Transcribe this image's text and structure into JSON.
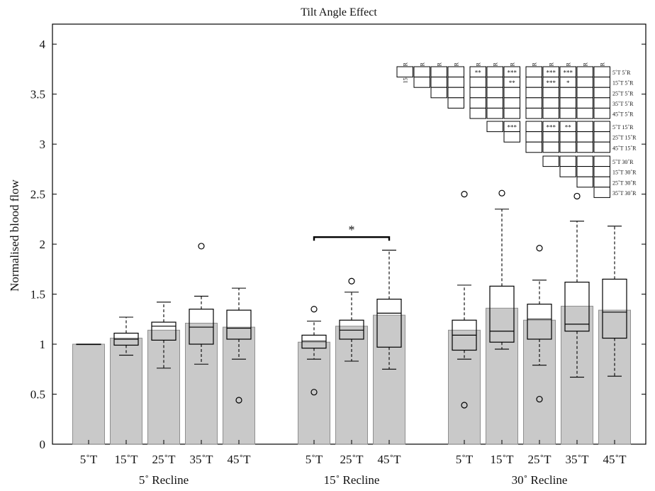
{
  "chart_data": {
    "type": "box",
    "title": "Tilt Angle Effect",
    "ylabel": "Normalised blood flow",
    "ylim": [
      0,
      4.2
    ],
    "yticks": [
      0,
      0.5,
      1,
      1.5,
      2,
      2.5,
      3,
      3.5,
      4
    ],
    "groups": [
      {
        "label": "5˚ Recline",
        "categories": [
          {
            "tick": "5˚T",
            "bar": 1.0,
            "whisker_low": 1.0,
            "q1": 1.0,
            "median": 1.0,
            "q3": 1.0,
            "whisker_high": 1.0,
            "outliers": []
          },
          {
            "tick": "15˚T",
            "bar": 1.06,
            "whisker_low": 0.89,
            "q1": 0.99,
            "median": 1.05,
            "q3": 1.11,
            "whisker_high": 1.27,
            "outliers": []
          },
          {
            "tick": "25˚T",
            "bar": 1.14,
            "whisker_low": 0.76,
            "q1": 1.04,
            "median": 1.18,
            "q3": 1.22,
            "whisker_high": 1.42,
            "outliers": []
          },
          {
            "tick": "35˚T",
            "bar": 1.21,
            "whisker_low": 0.8,
            "q1": 1.0,
            "median": 1.17,
            "q3": 1.35,
            "whisker_high": 1.48,
            "outliers": [
              1.98
            ]
          },
          {
            "tick": "45˚T",
            "bar": 1.17,
            "whisker_low": 0.85,
            "q1": 1.05,
            "median": 1.16,
            "q3": 1.34,
            "whisker_high": 1.56,
            "outliers": [
              0.44
            ]
          }
        ]
      },
      {
        "label": "15˚ Recline",
        "categories": [
          {
            "tick": "5˚T",
            "bar": 1.02,
            "whisker_low": 0.85,
            "q1": 0.96,
            "median": 1.03,
            "q3": 1.09,
            "whisker_high": 1.23,
            "outliers": [
              1.35,
              0.52
            ]
          },
          {
            "tick": "25˚T",
            "bar": 1.18,
            "whisker_low": 0.83,
            "q1": 1.05,
            "median": 1.14,
            "q3": 1.24,
            "whisker_high": 1.52,
            "outliers": [
              1.63
            ]
          },
          {
            "tick": "45˚T",
            "bar": 1.29,
            "whisker_low": 0.75,
            "q1": 0.97,
            "median": 1.31,
            "q3": 1.45,
            "whisker_high": 1.94,
            "outliers": []
          }
        ]
      },
      {
        "label": "30˚ Recline",
        "categories": [
          {
            "tick": "5˚T",
            "bar": 1.14,
            "whisker_low": 0.85,
            "q1": 0.94,
            "median": 1.09,
            "q3": 1.24,
            "whisker_high": 1.59,
            "outliers": [
              2.5,
              0.39
            ]
          },
          {
            "tick": "15˚T",
            "bar": 1.36,
            "whisker_low": 0.95,
            "q1": 1.02,
            "median": 1.13,
            "q3": 1.58,
            "whisker_high": 2.35,
            "outliers": [
              2.51
            ]
          },
          {
            "tick": "25˚T",
            "bar": 1.24,
            "whisker_low": 0.79,
            "q1": 1.05,
            "median": 1.25,
            "q3": 1.4,
            "whisker_high": 1.64,
            "outliers": [
              1.96,
              0.45
            ]
          },
          {
            "tick": "35˚T",
            "bar": 1.38,
            "whisker_low": 0.67,
            "q1": 1.13,
            "median": 1.2,
            "q3": 1.62,
            "whisker_high": 2.23,
            "outliers": [
              2.48
            ]
          },
          {
            "tick": "45˚T",
            "bar": 1.34,
            "whisker_low": 0.68,
            "q1": 1.06,
            "median": 1.32,
            "q3": 1.65,
            "whisker_high": 2.18,
            "outliers": []
          }
        ]
      }
    ],
    "significance_bracket": {
      "group": 1,
      "from": 0,
      "to": 2,
      "level": 2.07,
      "label": "*"
    },
    "matrix": {
      "blocks": [
        "5˚R",
        "15˚R",
        "30˚R"
      ],
      "labels": [
        "5˚T 5˚R",
        "15˚T 5˚R",
        "25˚T 5˚R",
        "35˚T 5˚R",
        "45˚T 5˚R",
        "5˚T 15˚R",
        "25˚T 15˚R",
        "45˚T 15˚R",
        "5˚T 30˚R",
        "15˚T 30˚R",
        "25˚T 30˚R",
        "35˚T 30˚R",
        "45˚T 30˚R"
      ],
      "significance": [
        {
          "row": 0,
          "col": 4,
          "stars": "**"
        },
        {
          "row": 0,
          "col": 6,
          "stars": "***"
        },
        {
          "row": 0,
          "col": 8,
          "stars": "***"
        },
        {
          "row": 0,
          "col": 9,
          "stars": "***"
        },
        {
          "row": 1,
          "col": 6,
          "stars": "**"
        },
        {
          "row": 1,
          "col": 8,
          "stars": "***"
        },
        {
          "row": 1,
          "col": 9,
          "stars": "*"
        },
        {
          "row": 5,
          "col": 4,
          "stars": "*"
        },
        {
          "row": 5,
          "col": 6,
          "stars": "***"
        },
        {
          "row": 5,
          "col": 8,
          "stars": "***"
        },
        {
          "row": 5,
          "col": 9,
          "stars": "**"
        }
      ]
    }
  }
}
